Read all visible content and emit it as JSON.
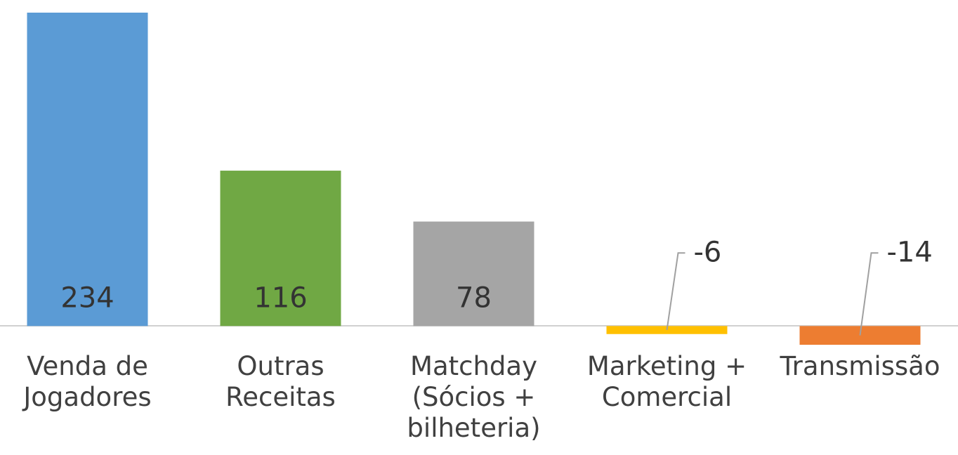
{
  "chart_data": {
    "type": "bar",
    "categories": [
      "Venda de Jogadores",
      "Outras Receitas",
      "Matchday (Sócios + bilheteria)",
      "Marketing + Comercial",
      "Transmissão"
    ],
    "values": [
      234,
      116,
      78,
      -6,
      -14
    ],
    "colors": [
      "#5b9bd5",
      "#70a844",
      "#a5a5a5",
      "#ffc000",
      "#ed7d31"
    ],
    "ylim": [
      -14,
      234
    ]
  }
}
